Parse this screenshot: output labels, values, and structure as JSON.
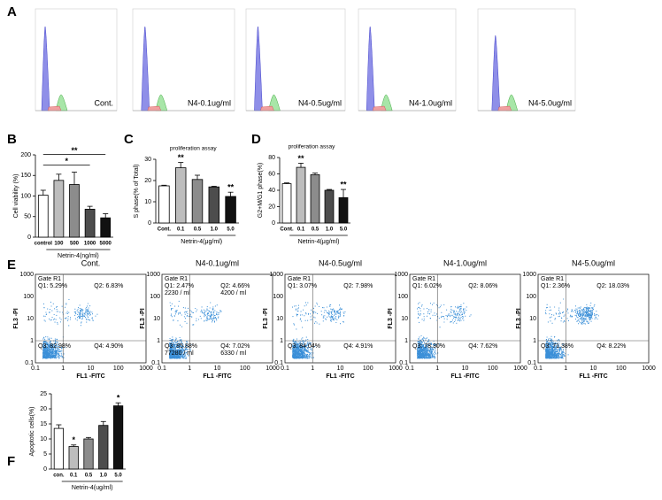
{
  "panel_letters": [
    "A",
    "B",
    "C",
    "D",
    "E",
    "F"
  ],
  "histograms": {
    "labels": [
      "Cont.",
      "N4-0.1ug/ml",
      "N4-0.5ug/ml",
      "N4-1.0ug/ml",
      "N4-5.0ug/ml"
    ]
  },
  "chart_data": [
    {
      "type": "bar",
      "ylabel": "Cell viability (%)",
      "xlabel": "Netrin-4(ng/ml)",
      "categories": [
        "control",
        "100",
        "500",
        "1000",
        "5000"
      ],
      "values": [
        102,
        138,
        128,
        68,
        47
      ],
      "errors": [
        12,
        15,
        30,
        7,
        10
      ],
      "colors": [
        "#ffffff",
        "#bdbdbd",
        "#8c8c8c",
        "#4d4d4d",
        "#111111"
      ],
      "ylim": [
        0,
        200
      ],
      "yticks": [
        0,
        50,
        100,
        150,
        200
      ],
      "brackets": [
        {
          "from": 0,
          "to": 3,
          "label": "*"
        },
        {
          "from": 0,
          "to": 4,
          "label": "**"
        }
      ]
    },
    {
      "type": "bar",
      "title": "proliferation assay",
      "ylabel": "S phase(% of Total)",
      "xlabel": "Netrin-4(μg/ml)",
      "categories": [
        "Cont.",
        "0.1",
        "0.5",
        "1.0",
        "5.0"
      ],
      "values": [
        17.5,
        26,
        20.5,
        17,
        12.5
      ],
      "errors": [
        0.3,
        2.5,
        2,
        0.3,
        2
      ],
      "significance": [
        null,
        "**",
        null,
        null,
        "**"
      ],
      "colors": [
        "#ffffff",
        "#bdbdbd",
        "#8c8c8c",
        "#4d4d4d",
        "#111111"
      ],
      "ylim": [
        0,
        30
      ],
      "yticks": [
        0,
        10,
        20,
        30
      ]
    },
    {
      "type": "bar",
      "title": "proliferation assay",
      "ylabel": "G2+M/G1 phase(%)",
      "xlabel": "Netrin-4(μg/ml)",
      "categories": [
        "Cont.",
        "0.1",
        "0.5",
        "1.0",
        "5.0"
      ],
      "values": [
        48,
        68,
        59,
        40,
        31
      ],
      "errors": [
        1,
        5,
        2,
        1,
        10
      ],
      "significance": [
        null,
        "**",
        null,
        null,
        "**"
      ],
      "colors": [
        "#ffffff",
        "#bdbdbd",
        "#8c8c8c",
        "#4d4d4d",
        "#111111"
      ],
      "ylim": [
        0,
        80
      ],
      "yticks": [
        0,
        20,
        40,
        60,
        80
      ]
    },
    {
      "type": "bar",
      "ylabel": "Apoptotic cells(%)",
      "xlabel": "Netrin-4(ug/ml)",
      "categories": [
        "con.",
        "0.1",
        "0.5",
        "1.0",
        "5.0"
      ],
      "values": [
        13.5,
        7.5,
        10,
        14.5,
        21
      ],
      "errors": [
        1.2,
        0.5,
        0.5,
        1.3,
        1
      ],
      "significance": [
        null,
        "*",
        null,
        null,
        "*"
      ],
      "colors": [
        "#ffffff",
        "#bdbdbd",
        "#8c8c8c",
        "#4d4d4d",
        "#111111"
      ],
      "ylim": [
        0,
        25
      ],
      "yticks": [
        0,
        5,
        10,
        15,
        20,
        25
      ]
    }
  ],
  "dot_plots": {
    "x_label": "FL1 -FITC",
    "y_label": "FL3 -PI",
    "gate": "Gate R1",
    "ticks": [
      "0.1",
      "1",
      "10",
      "100",
      "1000"
    ],
    "plots": [
      {
        "title": "Cont.",
        "q1": "Q1: 5.29%",
        "q2": "Q2: 6.83%",
        "q3": "Q3: 82.98%",
        "q4": "Q4: 4.90%"
      },
      {
        "title": "N4-0.1ug/ml",
        "q1": "Q1: 2.47%",
        "q2": "Q2: 4.66%",
        "q3": "Q3: 85.88%",
        "q4": "Q4: 7.02%",
        "q1_count": "2230 / ml",
        "q2_count": "4200 / ml",
        "q3_count": "77280 / ml",
        "q4_count": "6330 / ml"
      },
      {
        "title": "N4-0.5ug/ml",
        "q1": "Q1: 3.07%",
        "q2": "Q2: 7.98%",
        "q3": "Q3: 84.04%",
        "q4": "Q4: 4.91%"
      },
      {
        "title": "N4-1.0ug/ml",
        "q1": "Q1: 6.02%",
        "q2": "Q2: 8.06%",
        "q3": "Q3: 78.30%",
        "q4": "Q4: 7.62%"
      },
      {
        "title": "N4-5.0ug/ml",
        "q1": "Q1: 2.36%",
        "q2": "Q2: 18.03%",
        "q3": "Q3: 71.38%",
        "q4": "Q4: 8.22%"
      }
    ]
  }
}
